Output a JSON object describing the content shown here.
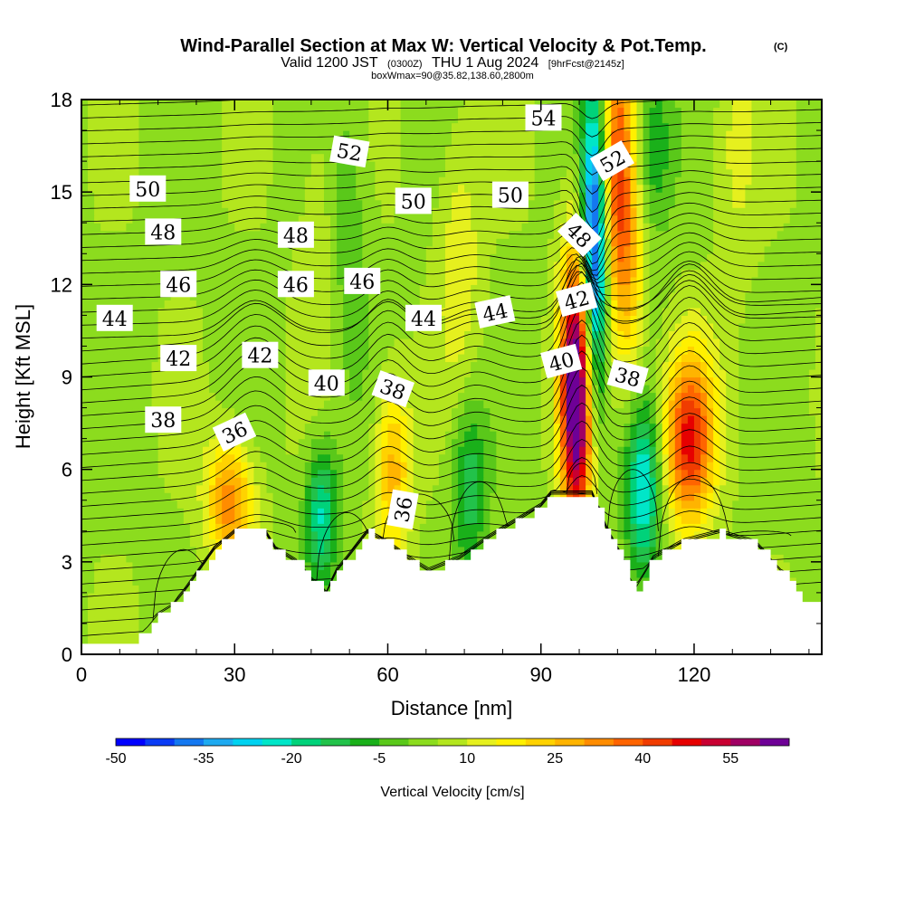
{
  "title": {
    "main": "Wind-Parallel Section at Max W: Vertical Velocity & Pot.Temp.",
    "copyright": "(C)",
    "line2_a": "Valid 1200 JST",
    "line2_b": "(0300Z)",
    "line2_c": "THU 1 Aug 2024",
    "line2_d": "[9hrFcst@2145z]",
    "line3": "boxWmax=90@35.82,138.60,2800m"
  },
  "chart_data": {
    "type": "heatmap",
    "xlabel": "Distance [nm]",
    "ylabel": "Height [Kft MSL]",
    "xlim": [
      0,
      145
    ],
    "ylim": [
      0,
      18
    ],
    "xticks": [
      0,
      30,
      60,
      90,
      120
    ],
    "yticks": [
      0,
      3,
      6,
      9,
      12,
      15,
      18
    ],
    "colorbar": {
      "label": "Vertical Velocity [cm/s]",
      "tick_values": [
        -50,
        -35,
        -20,
        -5,
        10,
        25,
        40,
        55
      ],
      "tick_labels": [
        "-50",
        "-35",
        "-20",
        "-5",
        "10",
        "25",
        "40",
        "55"
      ],
      "colors": [
        "#0000ff",
        "#0a3cf5",
        "#1478f0",
        "#1eaaf0",
        "#00d2f0",
        "#00e6c8",
        "#00d27a",
        "#22c24a",
        "#1ab01a",
        "#5ac81a",
        "#8cdc1e",
        "#b4e61e",
        "#e6f01e",
        "#fff000",
        "#ffd200",
        "#ffb400",
        "#ff8c00",
        "#ff6400",
        "#f03c00",
        "#e60000",
        "#c80032",
        "#a00064",
        "#6e0096"
      ]
    },
    "terrain_kft": [
      [
        0,
        0.3
      ],
      [
        10,
        0.3
      ],
      [
        12,
        0.7
      ],
      [
        15,
        1.3
      ],
      [
        18,
        1.6
      ],
      [
        20,
        2.0
      ],
      [
        23,
        2.7
      ],
      [
        26,
        3.4
      ],
      [
        30,
        3.95
      ],
      [
        36,
        3.95
      ],
      [
        38,
        3.4
      ],
      [
        42,
        3.0
      ],
      [
        45,
        2.4
      ],
      [
        48,
        2.0
      ],
      [
        50,
        2.7
      ],
      [
        52,
        3.1
      ],
      [
        56,
        3.95
      ],
      [
        60,
        3.6
      ],
      [
        64,
        3.1
      ],
      [
        68,
        2.7
      ],
      [
        74,
        3.1
      ],
      [
        80,
        3.8
      ],
      [
        85,
        4.3
      ],
      [
        90,
        4.8
      ],
      [
        92,
        5.2
      ],
      [
        100,
        5.2
      ],
      [
        103,
        4.0
      ],
      [
        106,
        3.1
      ],
      [
        108,
        2.0
      ],
      [
        112,
        3.1
      ],
      [
        118,
        3.65
      ],
      [
        125,
        3.95
      ],
      [
        132,
        3.6
      ],
      [
        137,
        2.7
      ],
      [
        141,
        1.9
      ],
      [
        145,
        1.4
      ]
    ],
    "isentropes": {
      "levels": [
        36,
        38,
        40,
        42,
        44,
        46,
        48,
        50,
        52,
        54
      ],
      "labels": [
        {
          "x": 30,
          "y": 7.2,
          "text": "36",
          "rot": -25
        },
        {
          "x": 63,
          "y": 4.7,
          "text": "36",
          "rot": -80
        },
        {
          "x": 16,
          "y": 7.6,
          "text": "38",
          "rot": 0
        },
        {
          "x": 61,
          "y": 8.6,
          "text": "38",
          "rot": 20
        },
        {
          "x": 107,
          "y": 9.0,
          "text": "38",
          "rot": 15
        },
        {
          "x": 48,
          "y": 8.8,
          "text": "40",
          "rot": 0
        },
        {
          "x": 94,
          "y": 9.5,
          "text": "40",
          "rot": -15
        },
        {
          "x": 19,
          "y": 9.6,
          "text": "42",
          "rot": 0
        },
        {
          "x": 35,
          "y": 9.7,
          "text": "42",
          "rot": 0
        },
        {
          "x": 97,
          "y": 11.5,
          "text": "42",
          "rot": -15
        },
        {
          "x": 6.5,
          "y": 10.9,
          "text": "44",
          "rot": 0
        },
        {
          "x": 67,
          "y": 10.9,
          "text": "44",
          "rot": 0
        },
        {
          "x": 81,
          "y": 11.1,
          "text": "44",
          "rot": -12
        },
        {
          "x": 19,
          "y": 12.0,
          "text": "46",
          "rot": 0
        },
        {
          "x": 42,
          "y": 12.0,
          "text": "46",
          "rot": 0
        },
        {
          "x": 55,
          "y": 12.1,
          "text": "46",
          "rot": 0
        },
        {
          "x": 16,
          "y": 13.7,
          "text": "48",
          "rot": 0
        },
        {
          "x": 42,
          "y": 13.6,
          "text": "48",
          "rot": 0
        },
        {
          "x": 97.5,
          "y": 13.6,
          "text": "48",
          "rot": 45
        },
        {
          "x": 13,
          "y": 15.1,
          "text": "50",
          "rot": 0
        },
        {
          "x": 65,
          "y": 14.7,
          "text": "50",
          "rot": 0
        },
        {
          "x": 84,
          "y": 14.9,
          "text": "50",
          "rot": 0
        },
        {
          "x": 52.5,
          "y": 16.3,
          "text": "52",
          "rot": 10
        },
        {
          "x": 104,
          "y": 16.0,
          "text": "52",
          "rot": -30
        },
        {
          "x": 90.5,
          "y": 17.4,
          "text": "54",
          "rot": 0
        }
      ]
    },
    "updrafts": [
      {
        "x": 97,
        "y": 8.5,
        "sx": 2.2,
        "sy": 3.2,
        "w": 70
      },
      {
        "x": 105,
        "y": 15.5,
        "sx": 2.4,
        "sy": 3.5,
        "w": 38
      },
      {
        "x": 108,
        "y": 11.8,
        "sx": 2.0,
        "sy": 2.8,
        "w": 12
      },
      {
        "x": 119,
        "y": 7.0,
        "sx": 3.5,
        "sy": 2.0,
        "w": 42
      },
      {
        "x": 29,
        "y": 5.0,
        "sx": 3.2,
        "sy": 1.4,
        "w": 30
      },
      {
        "x": 61,
        "y": 6.0,
        "sx": 2.5,
        "sy": 2.0,
        "w": 24
      },
      {
        "x": 128,
        "y": 16.5,
        "sx": 3.0,
        "sy": 3.0,
        "w": 8
      },
      {
        "x": 74,
        "y": 13.0,
        "sx": 3.0,
        "sy": 3.0,
        "w": 10
      },
      {
        "x": 47,
        "y": 14.0,
        "sx": 3.0,
        "sy": 4.0,
        "w": 6
      }
    ],
    "downdrafts": [
      {
        "x": 100.5,
        "y": 13.2,
        "sx": 1.8,
        "sy": 3.6,
        "w": -55
      },
      {
        "x": 110,
        "y": 5.3,
        "sx": 2.5,
        "sy": 2.0,
        "w": -30
      },
      {
        "x": 47,
        "y": 4.6,
        "sx": 2.2,
        "sy": 1.6,
        "w": -25
      },
      {
        "x": 76,
        "y": 5.5,
        "sx": 2.5,
        "sy": 2.0,
        "w": -18
      },
      {
        "x": 112,
        "y": 16.5,
        "sx": 3.0,
        "sy": 2.0,
        "w": -15
      },
      {
        "x": 52,
        "y": 13.5,
        "sx": 3.0,
        "sy": 4.0,
        "w": -8
      }
    ],
    "background_w": 4
  }
}
